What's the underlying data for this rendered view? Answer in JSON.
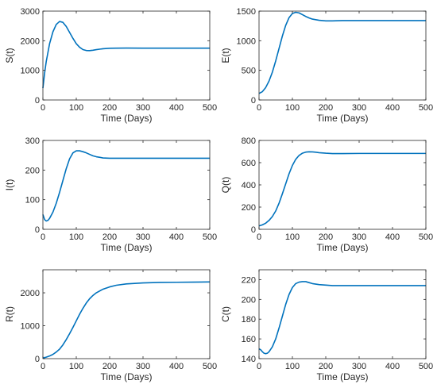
{
  "series_color": "#0072BD",
  "chart_data": [
    {
      "type": "line",
      "xlabel": "Time (Days)",
      "ylabel": "S(t)",
      "xlim": [
        0,
        500
      ],
      "ylim": [
        0,
        3000
      ],
      "xticks": [
        0,
        100,
        200,
        300,
        400,
        500
      ],
      "yticks": [
        0,
        1000,
        2000,
        3000
      ],
      "series": [
        {
          "x": [
            0,
            5,
            10,
            20,
            30,
            40,
            50,
            60,
            70,
            80,
            90,
            100,
            110,
            120,
            130,
            140,
            150,
            160,
            180,
            200,
            220,
            250,
            300,
            350,
            400,
            450,
            500
          ],
          "y": [
            400,
            900,
            1300,
            1900,
            2300,
            2550,
            2650,
            2620,
            2480,
            2280,
            2080,
            1900,
            1780,
            1700,
            1670,
            1665,
            1680,
            1700,
            1730,
            1745,
            1750,
            1752,
            1750,
            1750,
            1750,
            1750,
            1750
          ]
        }
      ]
    },
    {
      "type": "line",
      "xlabel": "Time (Days)",
      "ylabel": "E(t)",
      "xlim": [
        0,
        500
      ],
      "ylim": [
        0,
        1500
      ],
      "xticks": [
        0,
        100,
        200,
        300,
        400,
        500
      ],
      "yticks": [
        0,
        500,
        1000,
        1500
      ],
      "series": [
        {
          "x": [
            0,
            10,
            20,
            30,
            40,
            50,
            60,
            70,
            80,
            90,
            100,
            110,
            120,
            130,
            140,
            150,
            160,
            180,
            200,
            220,
            250,
            300,
            350,
            400,
            450,
            500
          ],
          "y": [
            110,
            140,
            210,
            320,
            470,
            660,
            870,
            1080,
            1260,
            1390,
            1460,
            1480,
            1470,
            1440,
            1410,
            1385,
            1365,
            1345,
            1335,
            1335,
            1340,
            1340,
            1340,
            1340,
            1340,
            1340
          ]
        }
      ]
    },
    {
      "type": "line",
      "xlabel": "Time (Days)",
      "ylabel": "I(t)",
      "xlim": [
        0,
        500
      ],
      "ylim": [
        0,
        300
      ],
      "xticks": [
        0,
        100,
        200,
        300,
        400,
        500
      ],
      "yticks": [
        0,
        100,
        200,
        300
      ],
      "series": [
        {
          "x": [
            0,
            5,
            10,
            15,
            20,
            30,
            40,
            50,
            60,
            70,
            80,
            90,
            100,
            110,
            120,
            130,
            140,
            150,
            160,
            180,
            200,
            220,
            250,
            300,
            350,
            400,
            450,
            500
          ],
          "y": [
            50,
            33,
            28,
            30,
            37,
            58,
            88,
            125,
            165,
            205,
            238,
            258,
            265,
            265,
            262,
            258,
            253,
            248,
            245,
            241,
            240,
            240,
            240,
            240,
            240,
            240,
            240,
            240
          ]
        }
      ]
    },
    {
      "type": "line",
      "xlabel": "Time (Days)",
      "ylabel": "Q(t)",
      "xlim": [
        0,
        500
      ],
      "ylim": [
        0,
        800
      ],
      "xticks": [
        0,
        100,
        200,
        300,
        400,
        500
      ],
      "yticks": [
        0,
        200,
        400,
        600,
        800
      ],
      "series": [
        {
          "x": [
            0,
            10,
            20,
            30,
            40,
            50,
            60,
            70,
            80,
            90,
            100,
            110,
            120,
            130,
            140,
            150,
            160,
            170,
            180,
            200,
            220,
            250,
            300,
            350,
            400,
            450,
            500
          ],
          "y": [
            30,
            40,
            55,
            80,
            115,
            165,
            235,
            320,
            410,
            500,
            575,
            630,
            665,
            685,
            695,
            698,
            697,
            694,
            690,
            685,
            682,
            682,
            683,
            683,
            683,
            683,
            683
          ]
        }
      ]
    },
    {
      "type": "line",
      "xlabel": "Time (Days)",
      "ylabel": "R(t)",
      "xlim": [
        0,
        500
      ],
      "ylim": [
        0,
        2700
      ],
      "xticks": [
        0,
        100,
        200,
        300,
        400,
        500
      ],
      "yticks": [
        0,
        1000,
        2000
      ],
      "series": [
        {
          "x": [
            0,
            10,
            20,
            30,
            40,
            50,
            60,
            70,
            80,
            90,
            100,
            110,
            120,
            130,
            140,
            150,
            160,
            180,
            200,
            220,
            250,
            300,
            350,
            400,
            450,
            500
          ],
          "y": [
            20,
            45,
            80,
            130,
            200,
            290,
            420,
            580,
            760,
            950,
            1150,
            1350,
            1530,
            1690,
            1820,
            1920,
            2000,
            2110,
            2180,
            2230,
            2270,
            2300,
            2315,
            2320,
            2325,
            2330
          ]
        }
      ]
    },
    {
      "type": "line",
      "xlabel": "Time (Days)",
      "ylabel": "C(t)",
      "xlim": [
        0,
        500
      ],
      "ylim": [
        140,
        230
      ],
      "xticks": [
        0,
        100,
        200,
        300,
        400,
        500
      ],
      "yticks": [
        140,
        160,
        180,
        200,
        220
      ],
      "series": [
        {
          "x": [
            0,
            5,
            10,
            15,
            20,
            25,
            30,
            40,
            50,
            60,
            70,
            80,
            90,
            100,
            110,
            120,
            130,
            140,
            150,
            160,
            180,
            200,
            220,
            250,
            300,
            350,
            400,
            450,
            500
          ],
          "y": [
            150,
            149,
            147,
            145.5,
            145,
            145.5,
            147,
            152,
            160,
            171,
            183,
            195,
            205,
            212,
            216,
            217.5,
            218,
            218,
            217,
            216,
            215,
            214.5,
            214,
            214,
            214,
            214,
            214,
            214,
            214
          ]
        }
      ]
    }
  ]
}
